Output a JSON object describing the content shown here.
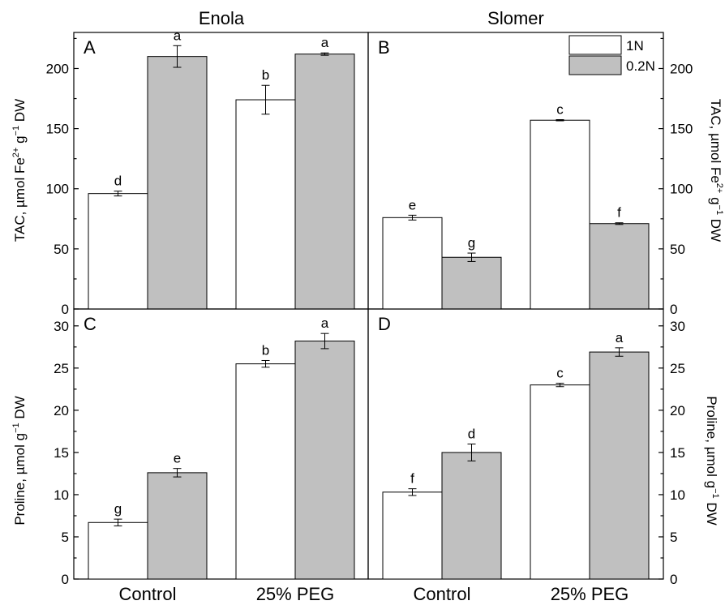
{
  "figure": {
    "column_titles": [
      "Enola",
      "Slomer"
    ],
    "legend": [
      {
        "label": "1N",
        "color": "#ffffff"
      },
      {
        "label": "0.2N",
        "color": "#c0c0c0"
      }
    ]
  },
  "chart_data": [
    {
      "type": "bar",
      "panel": "A",
      "cultivar": "Enola",
      "categories": [
        "Control",
        "25% PEG"
      ],
      "ylabel": "TAC, µmol Fe²⁺ g⁻¹ DW",
      "ylim": [
        0,
        230
      ],
      "yticks": [
        0,
        50,
        100,
        150,
        200
      ],
      "series": [
        {
          "name": "1N",
          "values": [
            96,
            174
          ],
          "errors": [
            2,
            12
          ],
          "letters": [
            "d",
            "b"
          ]
        },
        {
          "name": "0.2N",
          "values": [
            210,
            212
          ],
          "errors": [
            9,
            1
          ],
          "letters": [
            "a",
            "a"
          ]
        }
      ]
    },
    {
      "type": "bar",
      "panel": "B",
      "cultivar": "Slomer",
      "categories": [
        "Control",
        "25% PEG"
      ],
      "ylabel": "TAC, µmol Fe²⁺ g⁻¹ DW",
      "ylim": [
        0,
        230
      ],
      "yticks": [
        0,
        50,
        100,
        150,
        200
      ],
      "series": [
        {
          "name": "1N",
          "values": [
            76,
            157
          ],
          "errors": [
            2,
            0.5
          ],
          "letters": [
            "e",
            "c"
          ]
        },
        {
          "name": "0.2N",
          "values": [
            43,
            71
          ],
          "errors": [
            3.5,
            0.7
          ],
          "letters": [
            "g",
            "f"
          ]
        }
      ]
    },
    {
      "type": "bar",
      "panel": "C",
      "cultivar": "Enola",
      "categories": [
        "Control",
        "25% PEG"
      ],
      "ylabel": "Proline, µmol g⁻¹ DW",
      "ylim": [
        0,
        32
      ],
      "yticks": [
        0,
        5,
        10,
        15,
        20,
        25,
        30
      ],
      "series": [
        {
          "name": "1N",
          "values": [
            6.7,
            25.5
          ],
          "errors": [
            0.4,
            0.4
          ],
          "letters": [
            "g",
            "b"
          ]
        },
        {
          "name": "0.2N",
          "values": [
            12.6,
            28.2
          ],
          "errors": [
            0.5,
            0.9
          ],
          "letters": [
            "e",
            "a"
          ]
        }
      ]
    },
    {
      "type": "bar",
      "panel": "D",
      "cultivar": "Slomer",
      "categories": [
        "Control",
        "25% PEG"
      ],
      "ylabel": "Proline, µmol g⁻¹ DW",
      "ylim": [
        0,
        32
      ],
      "yticks": [
        0,
        5,
        10,
        15,
        20,
        25,
        30
      ],
      "series": [
        {
          "name": "1N",
          "values": [
            10.3,
            23.0
          ],
          "errors": [
            0.4,
            0.2
          ],
          "letters": [
            "f",
            "c"
          ]
        },
        {
          "name": "0.2N",
          "values": [
            15.0,
            26.9
          ],
          "errors": [
            1.0,
            0.5
          ],
          "letters": [
            "d",
            "a"
          ]
        }
      ]
    }
  ]
}
